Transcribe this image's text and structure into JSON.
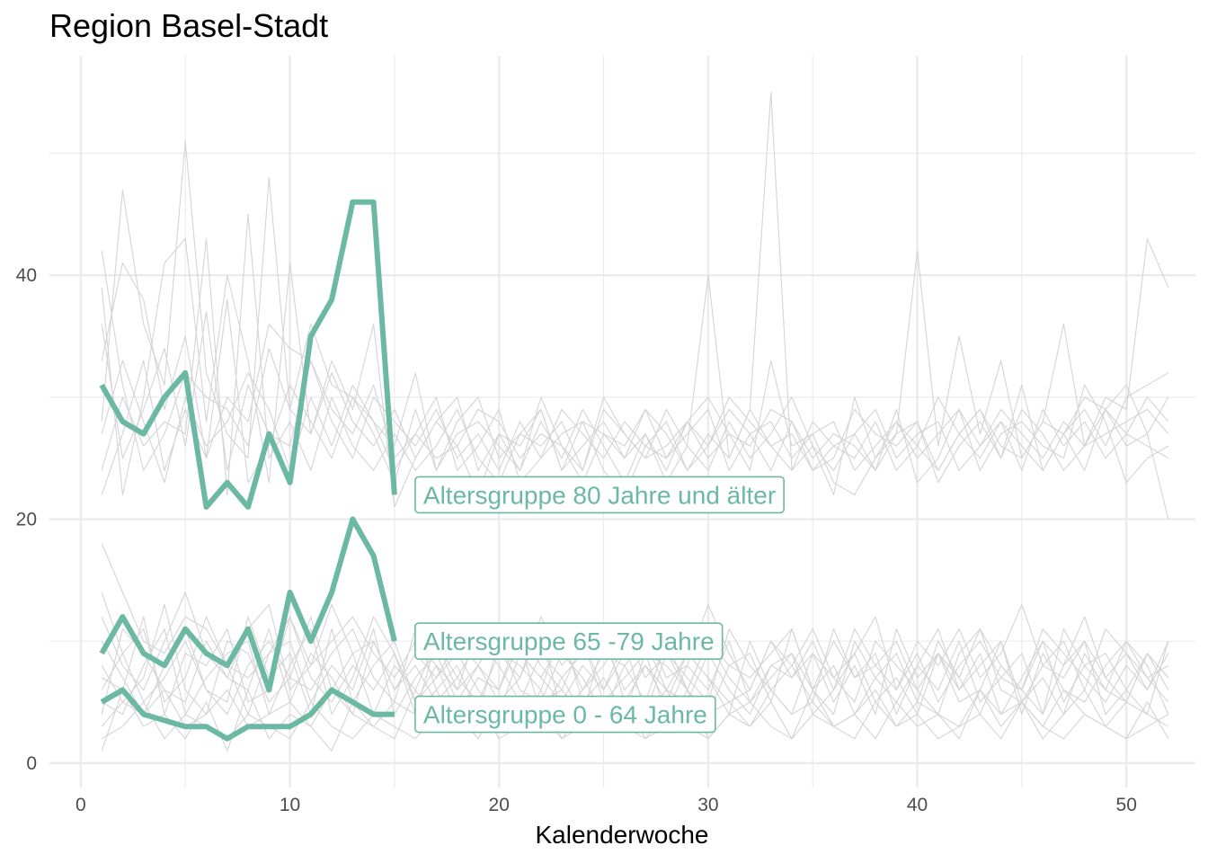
{
  "chart_data": {
    "type": "line",
    "title": "Region Basel-Stadt",
    "xlabel": "Kalenderwoche",
    "ylabel": "",
    "xlim": [
      -1.5,
      53.3
    ],
    "ylim": [
      -2,
      58
    ],
    "x_ticks": [
      0,
      10,
      20,
      30,
      40,
      50
    ],
    "y_ticks": [
      0,
      20,
      40
    ],
    "grid": true,
    "highlight_color": "#6BB8A3",
    "background_line_color": "#D4D4D4",
    "series": [
      {
        "name": "Altersgruppe 80 Jahre und älter",
        "x": [
          1,
          2,
          3,
          4,
          5,
          6,
          7,
          8,
          9,
          10,
          11,
          12,
          13,
          14,
          15
        ],
        "values": [
          31,
          28,
          27,
          30,
          32,
          21,
          23,
          21,
          27,
          23,
          35,
          38,
          46,
          46,
          22
        ]
      },
      {
        "name": "Altersgruppe 65 -79 Jahre",
        "x": [
          1,
          2,
          3,
          4,
          5,
          6,
          7,
          8,
          9,
          10,
          11,
          12,
          13,
          14,
          15
        ],
        "values": [
          9,
          12,
          9,
          8,
          11,
          9,
          8,
          11,
          6,
          14,
          10,
          14,
          20,
          17,
          10
        ]
      },
      {
        "name": "Altersgruppe 0 - 64 Jahre",
        "x": [
          1,
          2,
          3,
          4,
          5,
          6,
          7,
          8,
          9,
          10,
          11,
          12,
          13,
          14,
          15
        ],
        "values": [
          5,
          6,
          4,
          3.5,
          3,
          3,
          2,
          3,
          3,
          3,
          4,
          6,
          5,
          4,
          4
        ]
      }
    ],
    "background_series": {
      "x": [
        1,
        2,
        3,
        4,
        5,
        6,
        7,
        8,
        9,
        10,
        11,
        12,
        13,
        14,
        15,
        16,
        17,
        18,
        19,
        20,
        21,
        22,
        23,
        24,
        25,
        26,
        27,
        28,
        29,
        30,
        31,
        32,
        33,
        34,
        35,
        36,
        37,
        38,
        39,
        40,
        41,
        42,
        43,
        44,
        45,
        46,
        47,
        48,
        49,
        50,
        51,
        52
      ],
      "series": [
        [
          33,
          41,
          38,
          29,
          35,
          25,
          30,
          28,
          36,
          34,
          33,
          29,
          27,
          31,
          25,
          27,
          30,
          24,
          26,
          29,
          23,
          25,
          27,
          28,
          24,
          22,
          26,
          25,
          28,
          30,
          27,
          24,
          33,
          26,
          27,
          23,
          22,
          25,
          28,
          26,
          24,
          27,
          25,
          28,
          26,
          24,
          27,
          30,
          29,
          31,
          27,
          30
        ],
        [
          28,
          47,
          36,
          31,
          51,
          32,
          27,
          25,
          48,
          29,
          36,
          31,
          30,
          28,
          26,
          32,
          24,
          28,
          30,
          25,
          27,
          29,
          24,
          26,
          28,
          25,
          27,
          23,
          26,
          40,
          25,
          29,
          55,
          24,
          26,
          22,
          30,
          25,
          27,
          42,
          26,
          35,
          27,
          33,
          25,
          28,
          36,
          26,
          30,
          29,
          43,
          39
        ],
        [
          39,
          22,
          30,
          41,
          43,
          28,
          40,
          33,
          23,
          41,
          27,
          33,
          29,
          36,
          21,
          25,
          28,
          26,
          22,
          27,
          24,
          30,
          26,
          23,
          27,
          25,
          29,
          27,
          24,
          26,
          30,
          28,
          26,
          27,
          24,
          26,
          25,
          28,
          24,
          26,
          30,
          27,
          29,
          25,
          31,
          24,
          27,
          29,
          26,
          30,
          31,
          32
        ],
        [
          24,
          30,
          26,
          28,
          27,
          43,
          22,
          45,
          25,
          28,
          24,
          30,
          26,
          24,
          27,
          24,
          26,
          29,
          25,
          23,
          27,
          26,
          28,
          24,
          30,
          27,
          25,
          29,
          26,
          24,
          28,
          25,
          27,
          30,
          26,
          24,
          27,
          24,
          29,
          23,
          25,
          29,
          24,
          27,
          28,
          26,
          25,
          31,
          28,
          23,
          25,
          26
        ],
        [
          22,
          27,
          33,
          24,
          29,
          25,
          38,
          23,
          26,
          31,
          28,
          25,
          30,
          27,
          23,
          29,
          24,
          27,
          28,
          26,
          24,
          28,
          25,
          29,
          26,
          23,
          27,
          24,
          28,
          26,
          29,
          27,
          24,
          28,
          25,
          27,
          26,
          24,
          27,
          28,
          23,
          26,
          28,
          25,
          29,
          27,
          24,
          26,
          27,
          28,
          29,
          27
        ],
        [
          36,
          25,
          29,
          34,
          26,
          37,
          24,
          31,
          27,
          26,
          33,
          28,
          25,
          30,
          28,
          26,
          29,
          25,
          27,
          24,
          28,
          25,
          29,
          27,
          25,
          28,
          26,
          28,
          24,
          27,
          25,
          29,
          26,
          24,
          28,
          26,
          27,
          29,
          25,
          27,
          28,
          24,
          26,
          29,
          27,
          25,
          28,
          26,
          29,
          27,
          26,
          25
        ],
        [
          42,
          31,
          24,
          27,
          32,
          30,
          29,
          26,
          34,
          29,
          27,
          32,
          28,
          26,
          29,
          25,
          28,
          30,
          24,
          27,
          26,
          29,
          24,
          28,
          27,
          26,
          29,
          25,
          27,
          29,
          24,
          27,
          28,
          25,
          27,
          28,
          24,
          26,
          28,
          25,
          27,
          29,
          26,
          28,
          24,
          29,
          26,
          28,
          25,
          27,
          30,
          28
        ],
        [
          27,
          33,
          28,
          23,
          30,
          26,
          28,
          32,
          29,
          24,
          30,
          26,
          31,
          28,
          24,
          27,
          25,
          26,
          29,
          28,
          25,
          27,
          26,
          24,
          29,
          27,
          25,
          26,
          28,
          25,
          27,
          26,
          29,
          28,
          24,
          25,
          29,
          27,
          26,
          28,
          24,
          27,
          29,
          26,
          25,
          28,
          27,
          24,
          29,
          26,
          27,
          20
        ],
        [
          12,
          8,
          6,
          10,
          14,
          9,
          7,
          11,
          13,
          6,
          8,
          10,
          12,
          9,
          7,
          10,
          8,
          6,
          11,
          9,
          7,
          12,
          8,
          10,
          6,
          9,
          11,
          7,
          8,
          13,
          9,
          6,
          10,
          8,
          11,
          7,
          9,
          12,
          6,
          10,
          8,
          11,
          7,
          9,
          13,
          8,
          10,
          6,
          11,
          9,
          7,
          8
        ],
        [
          6,
          9,
          11,
          5,
          7,
          12,
          8,
          4,
          9,
          10,
          5,
          8,
          6,
          11,
          4,
          7,
          9,
          5,
          8,
          6,
          10,
          4,
          7,
          9,
          11,
          5,
          8,
          6,
          9,
          7,
          4,
          10,
          6,
          8,
          5,
          11,
          7,
          9,
          4,
          8,
          6,
          10,
          5,
          7,
          9,
          4,
          11,
          8,
          6,
          5,
          9,
          7
        ],
        [
          8,
          5,
          7,
          13,
          6,
          4,
          10,
          9,
          5,
          7,
          12,
          6,
          9,
          4,
          8,
          6,
          10,
          7,
          5,
          9,
          8,
          6,
          11,
          5,
          7,
          4,
          9,
          8,
          6,
          10,
          7,
          5,
          8,
          9,
          6,
          4,
          10,
          7,
          5,
          8,
          11,
          6,
          9,
          4,
          7,
          10,
          5,
          8,
          9,
          6,
          4,
          10
        ],
        [
          10,
          7,
          4,
          8,
          11,
          6,
          5,
          12,
          7,
          9,
          4,
          11,
          5,
          8,
          10,
          5,
          7,
          9,
          6,
          4,
          9,
          7,
          5,
          8,
          6,
          10,
          4,
          9,
          7,
          5,
          11,
          8,
          6,
          4,
          9,
          7,
          5,
          10,
          8,
          6,
          4,
          9,
          11,
          6,
          5,
          8,
          7,
          10,
          4,
          6,
          9,
          7
        ],
        [
          4,
          11,
          9,
          6,
          5,
          10,
          7,
          6,
          11,
          5,
          9,
          7,
          4,
          10,
          6,
          8,
          5,
          7,
          10,
          8,
          5,
          9,
          7,
          4,
          10,
          6,
          8,
          5,
          9,
          7,
          5,
          6,
          10,
          7,
          9,
          5,
          8,
          4,
          11,
          7,
          9,
          5,
          6,
          10,
          4,
          9,
          6,
          5,
          8,
          10,
          7,
          5
        ],
        [
          7,
          6,
          12,
          4,
          9,
          8,
          11,
          5,
          6,
          12,
          7,
          5,
          8,
          6,
          9,
          4,
          10,
          6,
          8,
          5,
          7,
          11,
          4,
          6,
          9,
          8,
          5,
          10,
          6,
          4,
          8,
          9,
          5,
          11,
          6,
          8,
          4,
          7,
          9,
          5,
          10,
          7,
          4,
          8,
          6,
          11,
          9,
          7,
          5,
          8,
          6,
          9
        ],
        [
          14,
          9,
          5,
          7,
          10,
          6,
          4,
          8,
          10,
          7,
          6,
          9,
          11,
          7,
          5,
          11,
          6,
          8,
          4,
          10,
          6,
          5,
          9,
          7,
          4,
          8,
          10,
          6,
          5,
          9,
          6,
          4,
          8,
          7,
          10,
          6,
          9,
          5,
          7,
          4,
          9,
          6,
          8,
          10,
          5,
          7,
          4,
          9,
          6,
          10,
          8,
          4
        ],
        [
          5,
          4,
          8,
          11,
          4,
          7,
          9,
          10,
          4,
          8,
          11,
          4,
          7,
          12,
          9,
          5,
          8,
          4,
          7,
          6,
          11,
          8,
          6,
          10,
          5,
          7,
          9,
          4,
          8,
          6,
          10,
          5,
          7,
          9,
          4,
          6,
          11,
          8,
          6,
          9,
          5,
          8,
          10,
          7,
          6,
          4,
          8,
          10,
          7,
          5,
          9,
          6
        ],
        [
          18,
          14,
          10,
          9,
          12,
          11,
          8,
          7,
          9,
          12,
          8,
          13,
          9,
          10,
          6,
          9,
          7,
          10,
          8,
          11,
          9,
          7,
          10,
          6,
          8,
          11,
          7,
          9,
          6,
          10,
          8,
          7,
          9,
          11,
          6,
          10,
          7,
          8,
          10,
          6,
          9,
          7,
          11,
          8,
          6,
          10,
          8,
          12,
          7,
          9,
          6,
          10
        ],
        [
          3,
          5,
          4,
          6,
          3,
          4,
          6,
          3,
          4,
          5,
          3,
          6,
          4,
          3,
          5,
          4,
          6,
          3,
          5,
          4,
          3,
          5,
          6,
          4,
          3,
          5,
          4,
          6,
          3,
          4,
          5,
          3,
          6,
          4,
          5,
          3,
          4,
          6,
          3,
          5,
          4,
          3,
          6,
          4,
          5,
          3,
          6,
          4,
          3,
          5,
          4,
          3
        ],
        [
          2,
          3,
          5,
          2,
          4,
          3,
          2,
          4,
          3,
          2,
          5,
          3,
          2,
          4,
          3,
          2,
          4,
          3,
          5,
          2,
          3,
          4,
          2,
          3,
          5,
          3,
          2,
          4,
          3,
          2,
          4,
          5,
          3,
          2,
          4,
          3,
          2,
          5,
          3,
          4,
          2,
          3,
          4,
          2,
          5,
          3,
          2,
          4,
          3,
          2,
          3,
          4
        ],
        [
          1,
          6,
          3,
          4,
          2,
          5,
          1,
          6,
          2,
          4,
          3,
          1,
          5,
          3,
          2,
          6,
          3,
          4,
          2,
          5,
          3,
          6,
          2,
          4,
          3,
          5,
          2,
          3,
          6,
          2,
          4,
          3,
          5,
          2,
          6,
          3,
          4,
          2,
          5,
          3,
          4,
          2,
          6,
          3,
          5,
          2,
          4,
          6,
          3,
          2,
          5,
          2
        ]
      ]
    }
  }
}
